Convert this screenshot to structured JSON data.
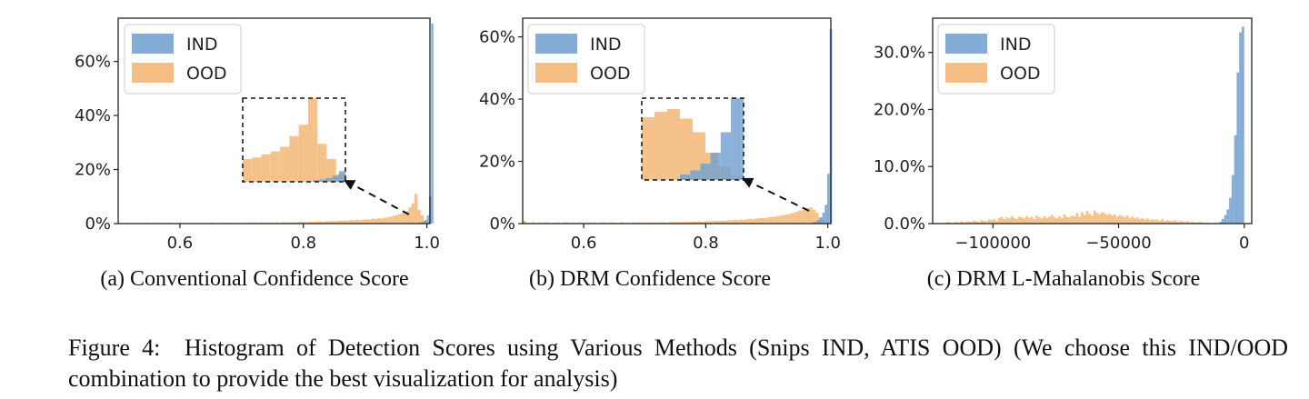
{
  "figure": {
    "caption_label": "Figure 4:",
    "caption_text": "Histogram of Detection Scores using Various Methods (Snips IND, ATIS OOD) (We choose this IND/OOD combination to provide the best visualization for analysis)"
  },
  "colors": {
    "ind": "#6f9fcf",
    "ood": "#f2b36f"
  },
  "chart_data": [
    {
      "type": "histogram",
      "subcaption": "(a)  Conventional Confidence Score",
      "xlim": [
        0.5,
        1.005
      ],
      "ylim": [
        0,
        0.76
      ],
      "xticks": [
        0.6,
        0.8,
        1.0
      ],
      "xtick_labels": [
        "0.6",
        "0.8",
        "1.0"
      ],
      "yticks": [
        0,
        0.2,
        0.4,
        0.6
      ],
      "ytick_labels": [
        "0%",
        "20%",
        "40%",
        "60%"
      ],
      "legend": {
        "position": "top-left",
        "entries": [
          "IND",
          "OOD"
        ]
      },
      "inset": {
        "note": "zoomed view of the distributions near score 1.0"
      },
      "series": [
        {
          "name": "IND",
          "bin_start": 0.9825,
          "bin_width": 0.0035,
          "values": [
            0.002,
            0.003,
            0.005,
            0.008,
            0.014,
            0.03,
            0.1,
            0.74
          ]
        },
        {
          "name": "OOD",
          "bin_start": 0.5,
          "bin_width": 0.005,
          "values": [
            0.002,
            0.001,
            0.001,
            0.003,
            0.002,
            0.001,
            0.002,
            0.001,
            0.002,
            0.003,
            0.001,
            0.002,
            0.003,
            0.002,
            0.001,
            0.002,
            0.003,
            0.002,
            0.001,
            0.002,
            0.003,
            0.002,
            0.002,
            0.001,
            0.003,
            0.002,
            0.002,
            0.003,
            0.001,
            0.002,
            0.003,
            0.002,
            0.002,
            0.003,
            0.002,
            0.003,
            0.002,
            0.003,
            0.002,
            0.003,
            0.003,
            0.002,
            0.004,
            0.003,
            0.003,
            0.002,
            0.004,
            0.003,
            0.004,
            0.003,
            0.003,
            0.004,
            0.003,
            0.005,
            0.004,
            0.004,
            0.005,
            0.004,
            0.006,
            0.005,
            0.006,
            0.005,
            0.007,
            0.006,
            0.007,
            0.008,
            0.007,
            0.009,
            0.008,
            0.01,
            0.009,
            0.011,
            0.01,
            0.012,
            0.011,
            0.013,
            0.012,
            0.014,
            0.013,
            0.015,
            0.016,
            0.015,
            0.018,
            0.017,
            0.02,
            0.019,
            0.022,
            0.024,
            0.026,
            0.03,
            0.032,
            0.036,
            0.04,
            0.046,
            0.06,
            0.075,
            0.11,
            0.05,
            0.03,
            0.01
          ]
        }
      ]
    },
    {
      "type": "histogram",
      "subcaption": "(b)  DRM Confidence Score",
      "xlim": [
        0.5,
        1.005
      ],
      "ylim": [
        0,
        0.66
      ],
      "xticks": [
        0.6,
        0.8,
        1.0
      ],
      "xtick_labels": [
        "0.6",
        "0.8",
        "1.0"
      ],
      "yticks": [
        0,
        0.2,
        0.4,
        0.6
      ],
      "ytick_labels": [
        "0%",
        "20%",
        "40%",
        "60%"
      ],
      "legend": {
        "position": "top-left",
        "entries": [
          "IND",
          "OOD"
        ]
      },
      "inset": {
        "note": "zoomed view of the distributions near score 1.0"
      },
      "series": [
        {
          "name": "IND",
          "bin_start": 0.975,
          "bin_width": 0.004,
          "values": [
            0.004,
            0.007,
            0.012,
            0.02,
            0.035,
            0.06,
            0.16,
            0.625
          ]
        },
        {
          "name": "OOD",
          "bin_start": 0.5,
          "bin_width": 0.005,
          "values": [
            0.01,
            0.003,
            0.002,
            0.004,
            0.002,
            0.003,
            0.002,
            0.004,
            0.003,
            0.002,
            0.003,
            0.004,
            0.002,
            0.003,
            0.004,
            0.002,
            0.003,
            0.002,
            0.004,
            0.003,
            0.002,
            0.003,
            0.004,
            0.003,
            0.002,
            0.003,
            0.004,
            0.002,
            0.003,
            0.004,
            0.003,
            0.002,
            0.004,
            0.003,
            0.003,
            0.002,
            0.004,
            0.003,
            0.004,
            0.003,
            0.003,
            0.004,
            0.003,
            0.004,
            0.003,
            0.004,
            0.004,
            0.003,
            0.005,
            0.004,
            0.005,
            0.004,
            0.005,
            0.006,
            0.005,
            0.006,
            0.006,
            0.007,
            0.006,
            0.007,
            0.008,
            0.007,
            0.008,
            0.009,
            0.008,
            0.01,
            0.009,
            0.011,
            0.01,
            0.012,
            0.011,
            0.013,
            0.012,
            0.014,
            0.015,
            0.014,
            0.016,
            0.017,
            0.018,
            0.017,
            0.02,
            0.021,
            0.022,
            0.024,
            0.025,
            0.027,
            0.029,
            0.031,
            0.034,
            0.037,
            0.04,
            0.043,
            0.046,
            0.05,
            0.052,
            0.045,
            0.035,
            0.02,
            0.01,
            0.003
          ]
        }
      ]
    },
    {
      "type": "histogram",
      "subcaption": "(c)  DRM L-Mahalanobis Score",
      "xlim": [
        -124000,
        3000
      ],
      "ylim": [
        0,
        0.36
      ],
      "xticks": [
        -100000,
        -50000,
        0
      ],
      "xtick_labels": [
        "−100000",
        "−50000",
        "0"
      ],
      "yticks": [
        0,
        0.1,
        0.2,
        0.3
      ],
      "ytick_labels": [
        "0.0%",
        "10.0%",
        "20.0%",
        "30.0%"
      ],
      "legend": {
        "position": "top-left",
        "entries": [
          "IND",
          "OOD"
        ]
      },
      "series": [
        {
          "name": "IND",
          "bin_start": -10000,
          "bin_width": 1000,
          "values": [
            0.003,
            0.008,
            0.015,
            0.025,
            0.045,
            0.085,
            0.155,
            0.265,
            0.335,
            0.345
          ]
        },
        {
          "name": "OOD",
          "bin_start": -119000,
          "bin_width": 1000,
          "values": [
            0.002,
            0.003,
            0.001,
            0.002,
            0.003,
            0.002,
            0.004,
            0.002,
            0.003,
            0.004,
            0.003,
            0.005,
            0.004,
            0.003,
            0.006,
            0.005,
            0.004,
            0.007,
            0.006,
            0.008,
            0.005,
            0.01,
            0.012,
            0.008,
            0.011,
            0.009,
            0.013,
            0.01,
            0.008,
            0.012,
            0.011,
            0.009,
            0.013,
            0.01,
            0.012,
            0.008,
            0.014,
            0.011,
            0.009,
            0.013,
            0.01,
            0.012,
            0.015,
            0.011,
            0.009,
            0.013,
            0.01,
            0.016,
            0.012,
            0.011,
            0.014,
            0.013,
            0.018,
            0.012,
            0.02,
            0.015,
            0.022,
            0.017,
            0.014,
            0.023,
            0.019,
            0.016,
            0.02,
            0.018,
            0.015,
            0.017,
            0.014,
            0.016,
            0.012,
            0.015,
            0.013,
            0.011,
            0.014,
            0.01,
            0.012,
            0.009,
            0.011,
            0.008,
            0.01,
            0.007,
            0.009,
            0.006,
            0.008,
            0.006,
            0.007,
            0.005,
            0.008,
            0.004,
            0.006,
            0.005,
            0.004,
            0.006,
            0.003,
            0.005,
            0.004,
            0.003,
            0.004,
            0.002,
            0.003,
            0.002,
            0.002,
            0.003,
            0.002,
            0.001,
            0.002,
            0.001,
            0.001,
            0.002
          ]
        }
      ]
    }
  ]
}
